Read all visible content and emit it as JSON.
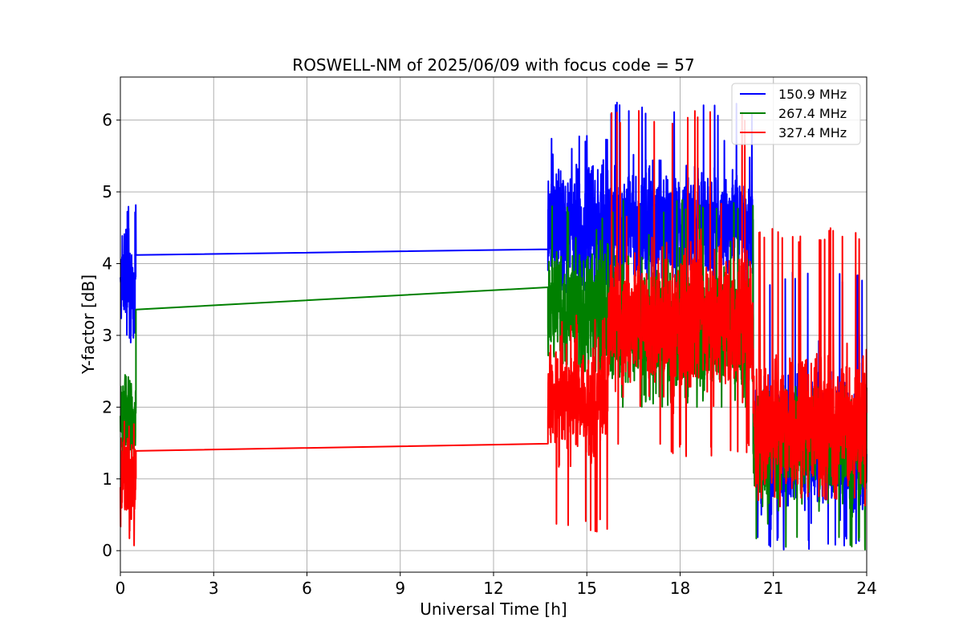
{
  "chart_data": {
    "type": "line",
    "title": "ROSWELL-NM of 2025/06/09 with focus code = 57",
    "xlabel": "Universal Time [h]",
    "ylabel": "Y-factor [dB]",
    "xlim": [
      0,
      24
    ],
    "ylim": [
      -0.3,
      6.6
    ],
    "xticks": [
      0,
      3,
      6,
      9,
      12,
      15,
      18,
      21,
      24
    ],
    "yticks": [
      0,
      1,
      2,
      3,
      4,
      5,
      6
    ],
    "grid": true,
    "legend_position": "top-right",
    "series": [
      {
        "name": "150.9 MHz",
        "color": "#0000ff",
        "segments": [
          {
            "x_start": 0.0,
            "x_end": 0.5,
            "center": 3.8,
            "spread": 0.35,
            "min": 2.9,
            "max": 4.9
          },
          {
            "x_start": 13.75,
            "x_end": 15.7,
            "center": 4.5,
            "spread": 0.45,
            "min": 3.6,
            "max": 5.9
          },
          {
            "x_start": 15.7,
            "x_end": 20.35,
            "center": 4.55,
            "spread": 0.4,
            "min": 3.4,
            "max": 6.25
          },
          {
            "x_start": 20.35,
            "x_end": 24.0,
            "center": 1.45,
            "spread": 0.45,
            "min": 0.0,
            "max": 3.9
          }
        ],
        "bridge": [
          [
            0.5,
            4.12
          ],
          [
            13.75,
            4.2
          ]
        ]
      },
      {
        "name": "267.4 MHz",
        "color": "#008000",
        "segments": [
          {
            "x_start": 0.0,
            "x_end": 0.5,
            "center": 1.8,
            "spread": 0.35,
            "min": 1.2,
            "max": 2.45
          },
          {
            "x_start": 13.75,
            "x_end": 15.7,
            "center": 3.4,
            "spread": 0.45,
            "min": 2.5,
            "max": 4.8
          },
          {
            "x_start": 15.7,
            "x_end": 20.35,
            "center": 3.1,
            "spread": 0.45,
            "min": 2.0,
            "max": 4.9
          },
          {
            "x_start": 20.35,
            "x_end": 24.0,
            "center": 1.5,
            "spread": 0.4,
            "min": 0.0,
            "max": 2.3
          }
        ],
        "bridge": [
          [
            0.5,
            3.36
          ],
          [
            13.75,
            3.67
          ]
        ]
      },
      {
        "name": "327.4 MHz",
        "color": "#ff0000",
        "segments": [
          {
            "x_start": 0.0,
            "x_end": 0.5,
            "center": 1.0,
            "spread": 0.35,
            "min": 0.0,
            "max": 1.8
          },
          {
            "x_start": 13.75,
            "x_end": 15.7,
            "center": 2.1,
            "spread": 0.4,
            "min": 0.25,
            "max": 3.3
          },
          {
            "x_start": 15.7,
            "x_end": 20.35,
            "center": 3.2,
            "spread": 0.5,
            "min": 1.3,
            "max": 6.15
          },
          {
            "x_start": 20.35,
            "x_end": 24.0,
            "center": 1.8,
            "spread": 0.45,
            "min": 0.6,
            "max": 4.5
          }
        ],
        "bridge": [
          [
            0.5,
            1.39
          ],
          [
            13.75,
            1.49
          ]
        ]
      }
    ]
  }
}
